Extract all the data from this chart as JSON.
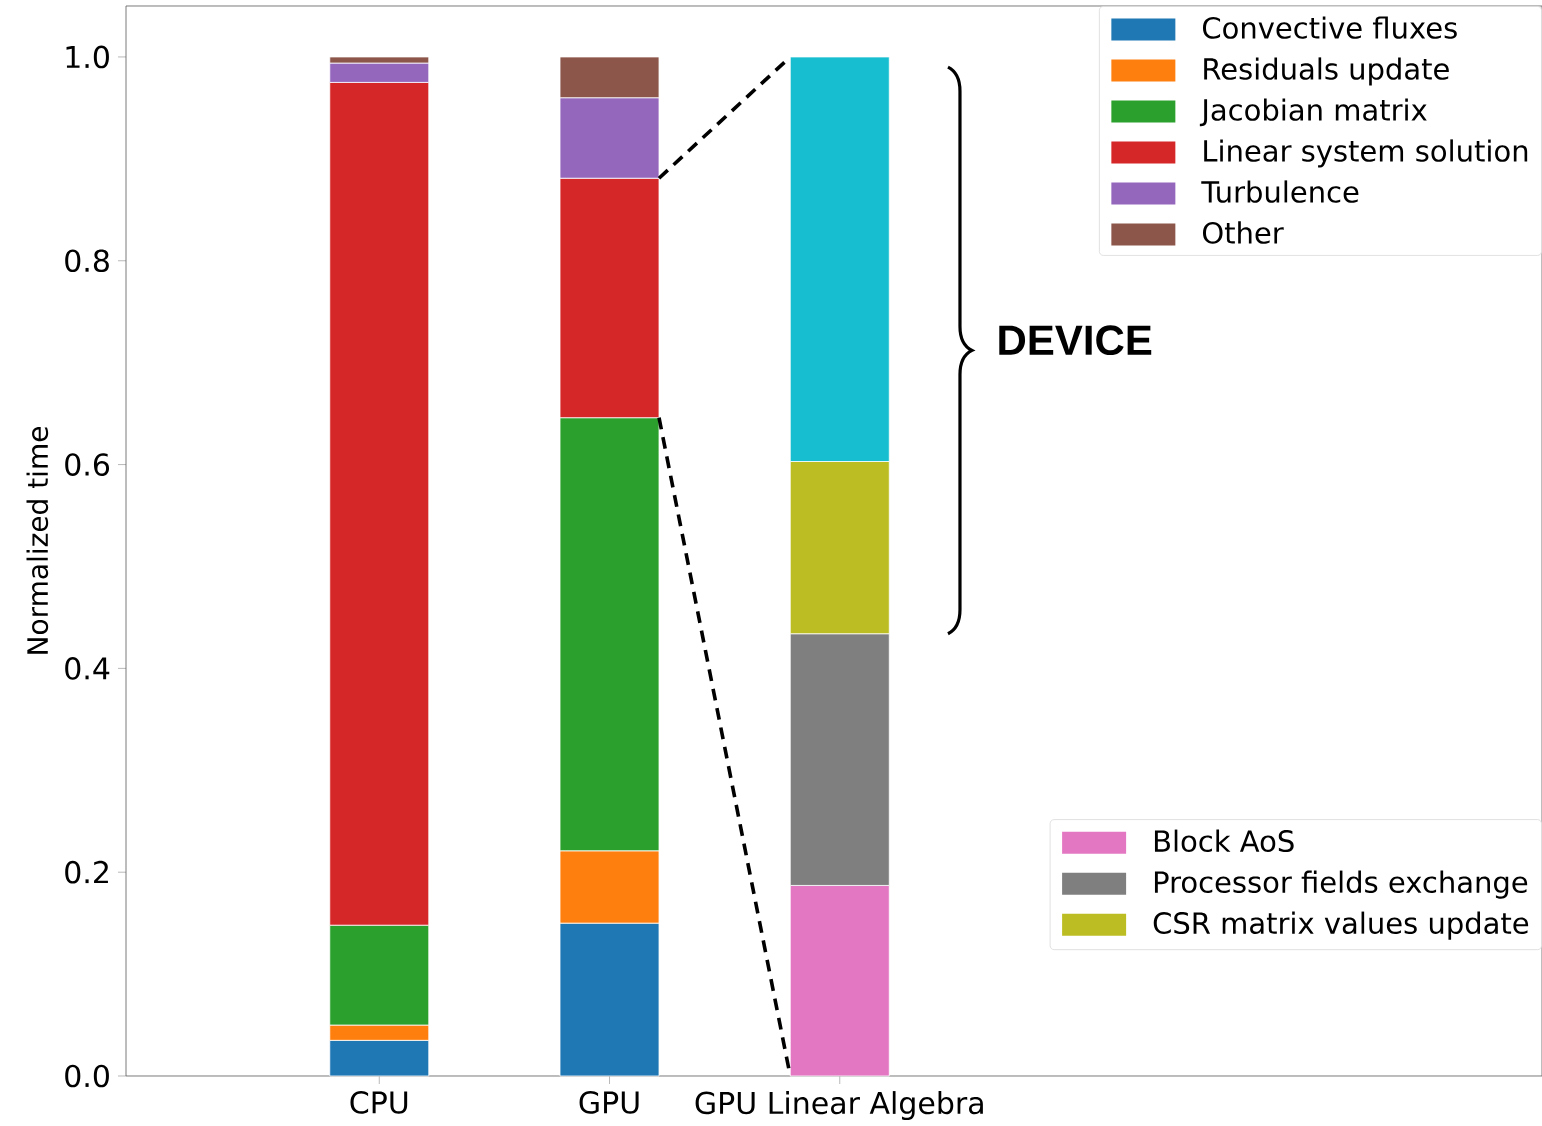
{
  "chart_data": {
    "type": "bar",
    "stacked": true,
    "ylabel": "Normalized time",
    "categories": [
      "CPU",
      "GPU",
      "GPU Linear Algebra"
    ],
    "series": [
      {
        "name": "Convective fluxes",
        "color": "#1f77b4",
        "values": [
          0.035,
          0.15,
          null
        ]
      },
      {
        "name": "Residuals update",
        "color": "#ff7f0e",
        "values": [
          0.015,
          0.071,
          null
        ]
      },
      {
        "name": "Jacobian matrix",
        "color": "#2ca02c",
        "values": [
          0.098,
          0.425,
          null
        ]
      },
      {
        "name": "Linear system solution",
        "color": "#d62728",
        "values": [
          0.827,
          0.235,
          null
        ]
      },
      {
        "name": "Turbulence",
        "color": "#9467bd",
        "values": [
          0.019,
          0.079,
          null
        ]
      },
      {
        "name": "Other",
        "color": "#8c564b",
        "values": [
          0.006,
          0.04,
          null
        ]
      },
      {
        "name": "Block AoS",
        "color": "#e377c2",
        "values": [
          null,
          null,
          0.187
        ]
      },
      {
        "name": "Processor fields exchange",
        "color": "#7f7f7f",
        "values": [
          null,
          null,
          0.247
        ]
      },
      {
        "name": "CSR matrix values update",
        "color": "#bcbd22",
        "values": [
          null,
          null,
          0.169
        ]
      },
      {
        "color": "#17becf",
        "values": [
          null,
          null,
          0.397
        ]
      }
    ],
    "ylim": [
      0,
      1.05
    ],
    "yticks": [
      {
        "value": 0,
        "label": "0.0"
      },
      {
        "value": 0.2,
        "label": "0.2"
      },
      {
        "value": 0.4,
        "label": "0.4"
      },
      {
        "value": 0.6,
        "label": "0.6"
      },
      {
        "value": 0.8,
        "label": "0.8"
      },
      {
        "value": 1.0,
        "label": "1.0"
      }
    ],
    "legend": "right",
    "annotations": [
      "DEVICE"
    ]
  }
}
